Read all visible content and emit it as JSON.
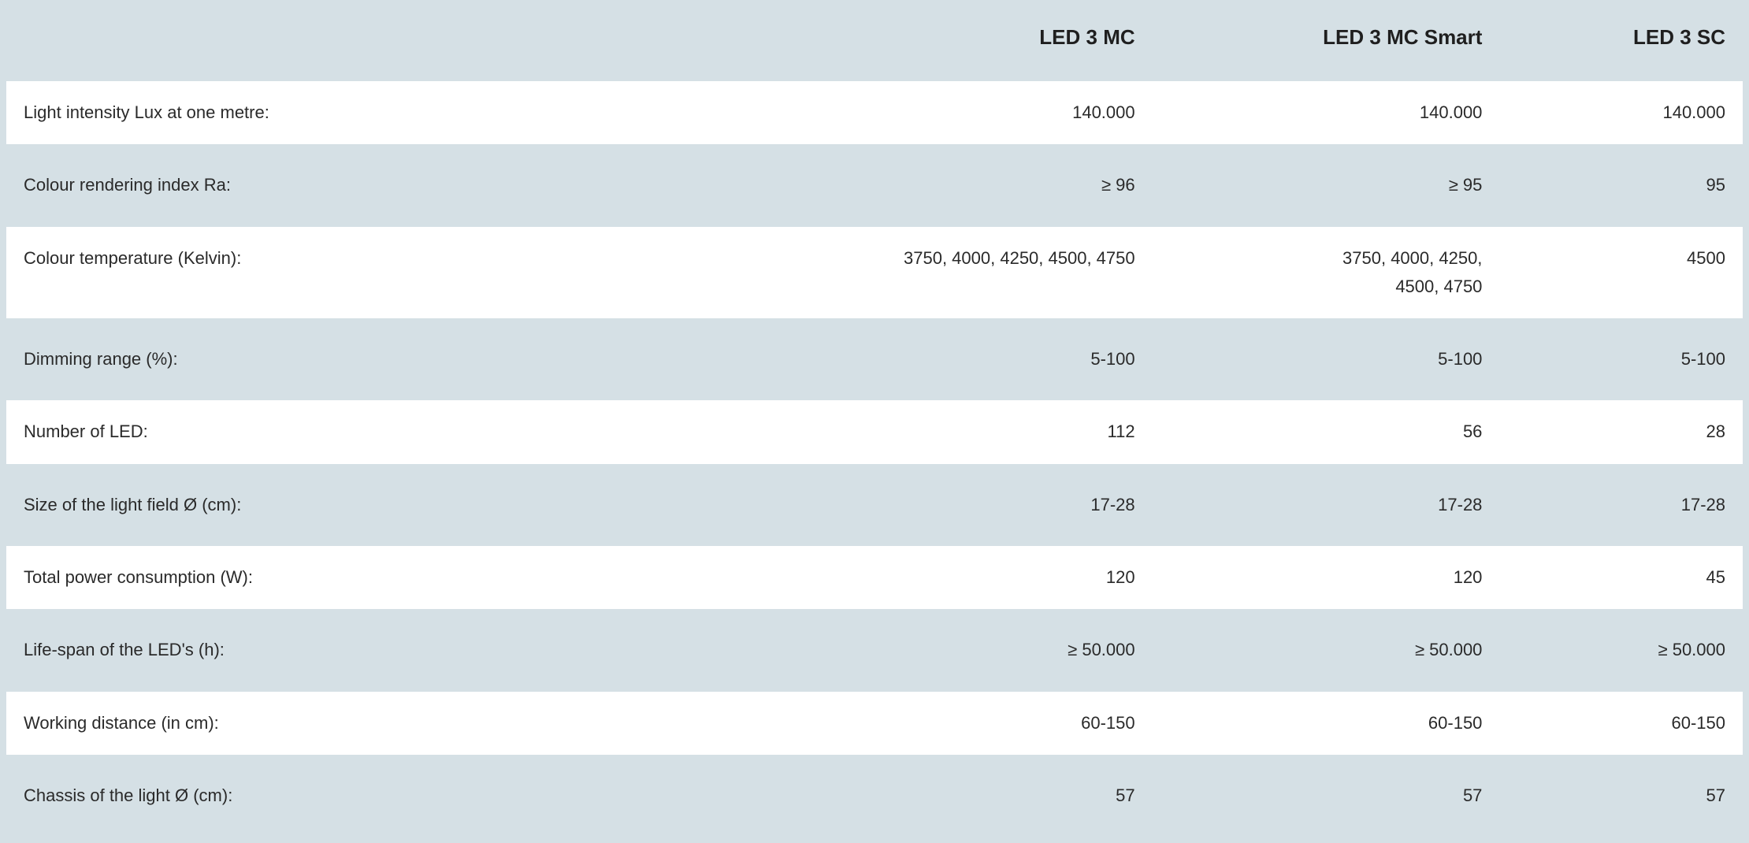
{
  "table": {
    "type": "table",
    "background_color": "#d5e0e5",
    "row_bg_white": "#ffffff",
    "row_bg_blue": "#d5e0e5",
    "text_color": "#2a2a2a",
    "header_fontsize": 26,
    "body_fontsize": 22,
    "row_spacing": 12,
    "cell_padding": 22,
    "columns": [
      {
        "key": "label",
        "header": "",
        "align": "left",
        "width_pct": 42
      },
      {
        "key": "a",
        "header": "LED 3 MC",
        "align": "right",
        "width_pct": 24
      },
      {
        "key": "b",
        "header": "LED 3 MC Smart",
        "align": "right",
        "width_pct": 20
      },
      {
        "key": "c",
        "header": "LED 3 SC",
        "align": "right",
        "width_pct": 14
      }
    ],
    "rows": [
      {
        "bg": "white",
        "label": "Light intensity Lux at one metre:",
        "a": "140.000",
        "b": "140.000",
        "c": "140.000"
      },
      {
        "bg": "blue",
        "label": "Colour rendering index Ra:",
        "a": "≥ 96",
        "b": "≥ 95",
        "c": "95"
      },
      {
        "bg": "white",
        "label": "Colour temperature (Kelvin):",
        "a": "3750, 4000, 4250, 4500, 4750",
        "b": "3750, 4000, 4250,\n4500, 4750",
        "c": "4500"
      },
      {
        "bg": "blue",
        "label": "Dimming range (%):",
        "a": "5-100",
        "b": "5-100",
        "c": "5-100"
      },
      {
        "bg": "white",
        "label": "Number of LED:",
        "a": "112",
        "b": "56",
        "c": "28"
      },
      {
        "bg": "blue",
        "label": "Size of the light field Ø (cm):",
        "a": "17-28",
        "b": "17-28",
        "c": "17-28"
      },
      {
        "bg": "white",
        "label": "Total power consumption (W):",
        "a": "120",
        "b": "120",
        "c": "45"
      },
      {
        "bg": "blue",
        "label": "Life-span of the LED's (h):",
        "a": "≥ 50.000",
        "b": "≥ 50.000",
        "c": "≥ 50.000"
      },
      {
        "bg": "white",
        "label": "Working distance (in cm):",
        "a": "60-150",
        "b": "60-150",
        "c": "60-150"
      },
      {
        "bg": "blue",
        "label": "Chassis of the light Ø (cm):",
        "a": "57",
        "b": "57",
        "c": "57"
      }
    ]
  }
}
